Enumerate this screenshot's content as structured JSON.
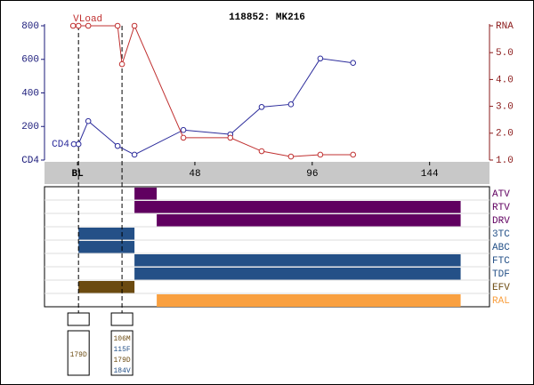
{
  "chart_data": {
    "type": "line",
    "title": "118852: MK216",
    "xlim": [
      -13.5,
      168.5
    ],
    "xticks": [
      {
        "value": 0,
        "label": "BL"
      },
      48,
      96,
      144
    ],
    "ylim": [
      0,
      800
    ],
    "yticks": [
      {
        "value": 0,
        "label": "CD4"
      },
      200,
      400,
      600,
      800
    ],
    "y2lim": [
      1,
      6
    ],
    "y2ticks": [
      {
        "value": 1,
        "label": "1.0"
      },
      {
        "value": 2,
        "label": "2.0"
      },
      {
        "value": 3,
        "label": "3.0"
      },
      {
        "value": 4,
        "label": "4.0"
      },
      {
        "value": 5,
        "label": "5.0"
      },
      {
        "value": 6,
        "label": "RNA"
      }
    ],
    "series": [
      {
        "name": "CD4",
        "color": "#2b2b9b",
        "x": [
          -1.5,
          0.4,
          4.4,
          16.4,
          23.3,
          43.3,
          62.5,
          75.3,
          87.3,
          99.3,
          112.7
        ],
        "values": [
          95,
          95,
          232,
          84,
          32,
          179,
          153,
          316,
          332,
          605,
          579
        ]
      },
      {
        "name": "VLoad",
        "color": "#c03030",
        "axis": "y2",
        "x": [
          -1.8,
          0.4,
          4.4,
          16.4,
          18.2,
          23.3,
          43.3,
          62.5,
          75.3,
          87.3,
          99.3,
          112.7
        ],
        "values": [
          6,
          6,
          6,
          6,
          4.57,
          6,
          1.83,
          1.83,
          1.33,
          1.13,
          1.2,
          1.2
        ]
      }
    ],
    "regimens": [
      {
        "name": "ATV",
        "color": "#600060",
        "start": 23.3,
        "end": 32.4
      },
      {
        "name": "RTV",
        "color": "#600060",
        "start": 23.3,
        "end": 156.7
      },
      {
        "name": "DRV",
        "color": "#600060",
        "start": 32.4,
        "end": 156.7
      },
      {
        "name": "3TC",
        "color": "#245087",
        "start": 0.4,
        "end": 23.3
      },
      {
        "name": "ABC",
        "color": "#245087",
        "start": 0.4,
        "end": 23.3
      },
      {
        "name": "FTC",
        "color": "#245087",
        "start": 23.3,
        "end": 156.7
      },
      {
        "name": "TDF",
        "color": "#245087",
        "start": 23.3,
        "end": 156.7
      },
      {
        "name": "EFV",
        "color": "#6b4a10",
        "start": 0.4,
        "end": 23.3
      },
      {
        "name": "RAL",
        "color": "#f9a040",
        "start": 32.4,
        "end": 156.7
      }
    ],
    "genotypes": [
      {
        "week": 0.4,
        "mutations": [
          {
            "text": "179D",
            "color": "#6b4a10"
          }
        ]
      },
      {
        "week": 18.2,
        "mutations": [
          {
            "text": "106M",
            "color": "#6b4a10"
          },
          {
            "text": "115F",
            "color": "#245087"
          },
          {
            "text": "179D",
            "color": "#6b4a10"
          },
          {
            "text": "184V",
            "color": "#245087"
          }
        ]
      }
    ]
  }
}
